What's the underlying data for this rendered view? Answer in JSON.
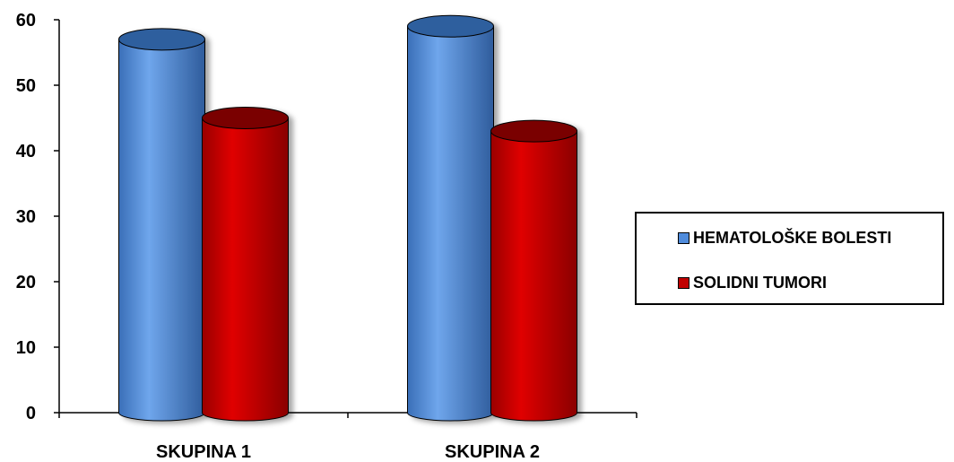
{
  "chart_data": {
    "type": "bar",
    "categories": [
      "SKUPINA 1",
      "SKUPINA 2"
    ],
    "series": [
      {
        "name": "HEMATOLOŠKE BOLESTI",
        "values": [
          57,
          59
        ],
        "color": "#4F8BDB",
        "top_color": "#2E5E9E"
      },
      {
        "name": "SOLIDNI TUMORI",
        "values": [
          45,
          43
        ],
        "color": "#C00000",
        "top_color": "#7A0000"
      }
    ],
    "ylim": [
      0,
      60
    ],
    "yticks": [
      "0",
      "10",
      "20",
      "30",
      "40",
      "50",
      "60"
    ],
    "legend_position": "right",
    "grid": false,
    "style": "3d-cylinder"
  }
}
